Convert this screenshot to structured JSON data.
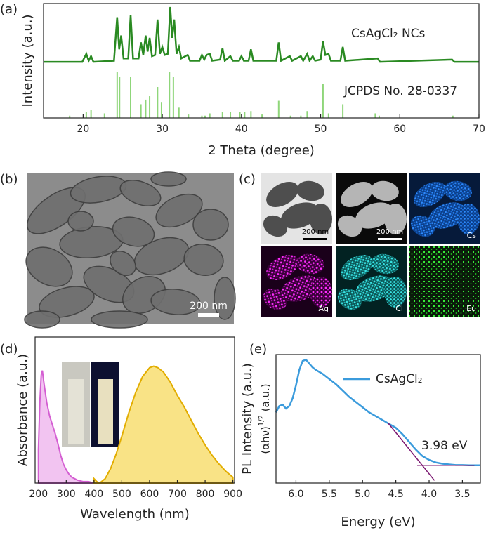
{
  "panel_labels": [
    "(a)",
    "(b)",
    "(c)",
    "(d)",
    "(e)"
  ],
  "images": {
    "tem_scale": "200 nm",
    "eds": [
      {
        "scale": "200 nm"
      },
      {
        "scale": "200 nm"
      },
      {
        "label": "Cs"
      },
      {
        "label": "Ag"
      },
      {
        "label": "Cl"
      },
      {
        "label": "Eu"
      }
    ]
  },
  "chart_data": [
    {
      "type": "line",
      "xlabel": "2 Theta (degree)",
      "ylabel": "Intensity (a.u.)",
      "xlim": [
        15,
        70
      ],
      "xticks": [
        20,
        30,
        40,
        50,
        60,
        70
      ],
      "ylim": [
        0,
        100
      ],
      "series": [
        {
          "name": "CsAgCl₂ NCs",
          "color": "#2a8a22",
          "x": [
            15,
            19.9,
            20.4,
            20.7,
            21.0,
            21.3,
            23.9,
            24.3,
            24.55,
            24.8,
            25.1,
            25.7,
            26.0,
            26.3,
            27.0,
            27.3,
            27.6,
            27.9,
            28.15,
            28.4,
            28.7,
            29.1,
            29.4,
            29.7,
            30.0,
            30.3,
            30.7,
            31.0,
            31.25,
            31.5,
            31.8,
            32.1,
            32.4,
            33.2,
            33.5,
            34.7,
            35.0,
            35.3,
            35.6,
            36.0,
            36.3,
            37.3,
            37.6,
            37.9,
            38.6,
            38.9,
            39.7,
            40.0,
            40.3,
            40.9,
            41.2,
            41.5,
            44.4,
            44.7,
            45.0,
            46.1,
            46.4,
            47.5,
            47.8,
            48.3,
            48.6,
            49.0,
            49.3,
            50.0,
            50.3,
            50.6,
            51.0,
            51.3,
            52.5,
            52.8,
            53.1,
            57.2,
            57.5,
            66.6,
            66.9,
            70
          ],
          "values": [
            49,
            49,
            56,
            50,
            54,
            49,
            50,
            88,
            60,
            72,
            52,
            52,
            90,
            52,
            52,
            66,
            55,
            72,
            58,
            70,
            54,
            55,
            86,
            56,
            62,
            55,
            56,
            97,
            70,
            86,
            56,
            62,
            52,
            55,
            50,
            50,
            55,
            51,
            55,
            56,
            50,
            51,
            61,
            50,
            54,
            50,
            50,
            54,
            50,
            50,
            60,
            50,
            50,
            66,
            50,
            54,
            50,
            54,
            50,
            56,
            50,
            54,
            50,
            51,
            67,
            55,
            56,
            50,
            50,
            62,
            50,
            52,
            49,
            51,
            49,
            49
          ]
        },
        {
          "name": "JCPDS No. 28-0337",
          "color": "#8fd67a",
          "style": "stick",
          "x": [
            18.3,
            20.4,
            21.0,
            22.7,
            24.3,
            24.6,
            26.0,
            27.3,
            27.9,
            28.4,
            29.4,
            29.9,
            30.9,
            31.4,
            32.1,
            33.3,
            35.0,
            35.4,
            36.0,
            37.6,
            38.6,
            39.8,
            40.4,
            41.2,
            42.6,
            44.7,
            46.2,
            47.5,
            48.3,
            50.3,
            51.0,
            52.8,
            56.9,
            57.4,
            66.7
          ],
          "values": [
            2,
            5,
            7,
            4,
            40,
            36,
            36,
            12,
            16,
            19,
            27,
            14,
            40,
            36,
            9,
            3,
            2,
            2,
            4,
            5,
            5,
            5,
            5,
            6,
            3,
            15,
            2,
            2,
            6,
            30,
            4,
            12,
            4,
            2,
            2
          ]
        }
      ]
    },
    {
      "type": "area",
      "xlabel": "Wavelength (nm)",
      "ylabel": "Absorbance (a.u.)",
      "xlim": [
        188,
        906
      ],
      "xticks": [
        200,
        300,
        400,
        500,
        600,
        700,
        800,
        900
      ],
      "ylim": [
        0,
        100
      ],
      "series": [
        {
          "color": "#d45fd2",
          "fill": "#eeb0ec",
          "x": [
            200,
            205,
            210,
            214,
            220,
            230,
            240,
            250,
            260,
            270,
            280,
            290,
            300,
            310,
            320,
            340,
            360,
            380,
            400
          ],
          "values": [
            23,
            55,
            74,
            77,
            68,
            55,
            46,
            40,
            34,
            27,
            19,
            13,
            9,
            6,
            4,
            2,
            1,
            1,
            0
          ]
        },
        {
          "color": "#e2ad00",
          "fill": "#f7da5e",
          "x": [
            400,
            410,
            420,
            440,
            460,
            480,
            500,
            525,
            550,
            575,
            600,
            615,
            630,
            650,
            675,
            700,
            725,
            750,
            775,
            800,
            825,
            850,
            875,
            900
          ],
          "values": [
            3,
            1,
            0,
            3,
            10,
            20,
            32,
            48,
            62,
            73,
            79,
            80,
            79,
            76,
            69,
            60,
            52,
            43,
            34,
            26,
            19,
            13,
            8,
            4
          ]
        }
      ]
    },
    {
      "type": "line",
      "xlabel": "Energy (eV)",
      "ylabel": "PL Intensity (a.u.)",
      "y2label": {
        "base": "(αhν)",
        "sup": "1/2",
        "unit": " (a.u.)"
      },
      "xlim": [
        6.3,
        3.23
      ],
      "xticks": [
        {
          "value": 6,
          "label": "6.0"
        },
        5.5,
        {
          "value": 5,
          "label": "5.0"
        },
        4.5,
        {
          "value": 4,
          "label": "4.0"
        },
        3.5
      ],
      "ylim": [
        0,
        100
      ],
      "legend": "upper right",
      "annotations": [
        "3.98 eV"
      ],
      "series": [
        {
          "name": "CsAgCl₂",
          "color": "#3b9bdc",
          "x": [
            6.3,
            6.25,
            6.2,
            6.15,
            6.1,
            6.05,
            6.0,
            5.95,
            5.9,
            5.85,
            5.8,
            5.75,
            5.7,
            5.6,
            5.5,
            5.4,
            5.3,
            5.2,
            5.1,
            5.0,
            4.9,
            4.8,
            4.7,
            4.6,
            4.5,
            4.4,
            4.3,
            4.2,
            4.1,
            4.0,
            3.9,
            3.8,
            3.7,
            3.6,
            3.5,
            3.4,
            3.23
          ],
          "values": [
            55,
            60,
            61,
            58,
            60,
            66,
            76,
            88,
            95,
            96,
            93,
            90,
            88,
            85,
            81,
            77,
            72,
            67,
            63,
            59,
            55,
            52,
            49,
            46,
            43,
            38,
            32,
            26,
            21,
            18,
            16,
            15,
            14.5,
            14,
            14,
            13.8,
            13.8
          ]
        },
        {
          "color": "#7a1570",
          "x": [
            4.62,
            3.92
          ],
          "values": [
            47,
            2
          ]
        },
        {
          "color": "#7a1570",
          "x": [
            4.18,
            3.32
          ],
          "values": [
            13.8,
            13.8
          ]
        }
      ]
    }
  ]
}
